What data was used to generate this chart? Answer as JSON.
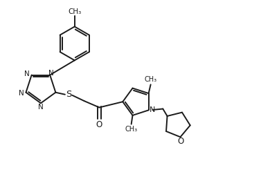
{
  "bg_color": "#ffffff",
  "line_color": "#1a1a1a",
  "line_width": 1.4,
  "font_size": 7.5,
  "figsize": [
    3.77,
    2.46
  ],
  "dpi": 100,
  "xlim": [
    0,
    10
  ],
  "ylim": [
    0,
    6.5
  ]
}
